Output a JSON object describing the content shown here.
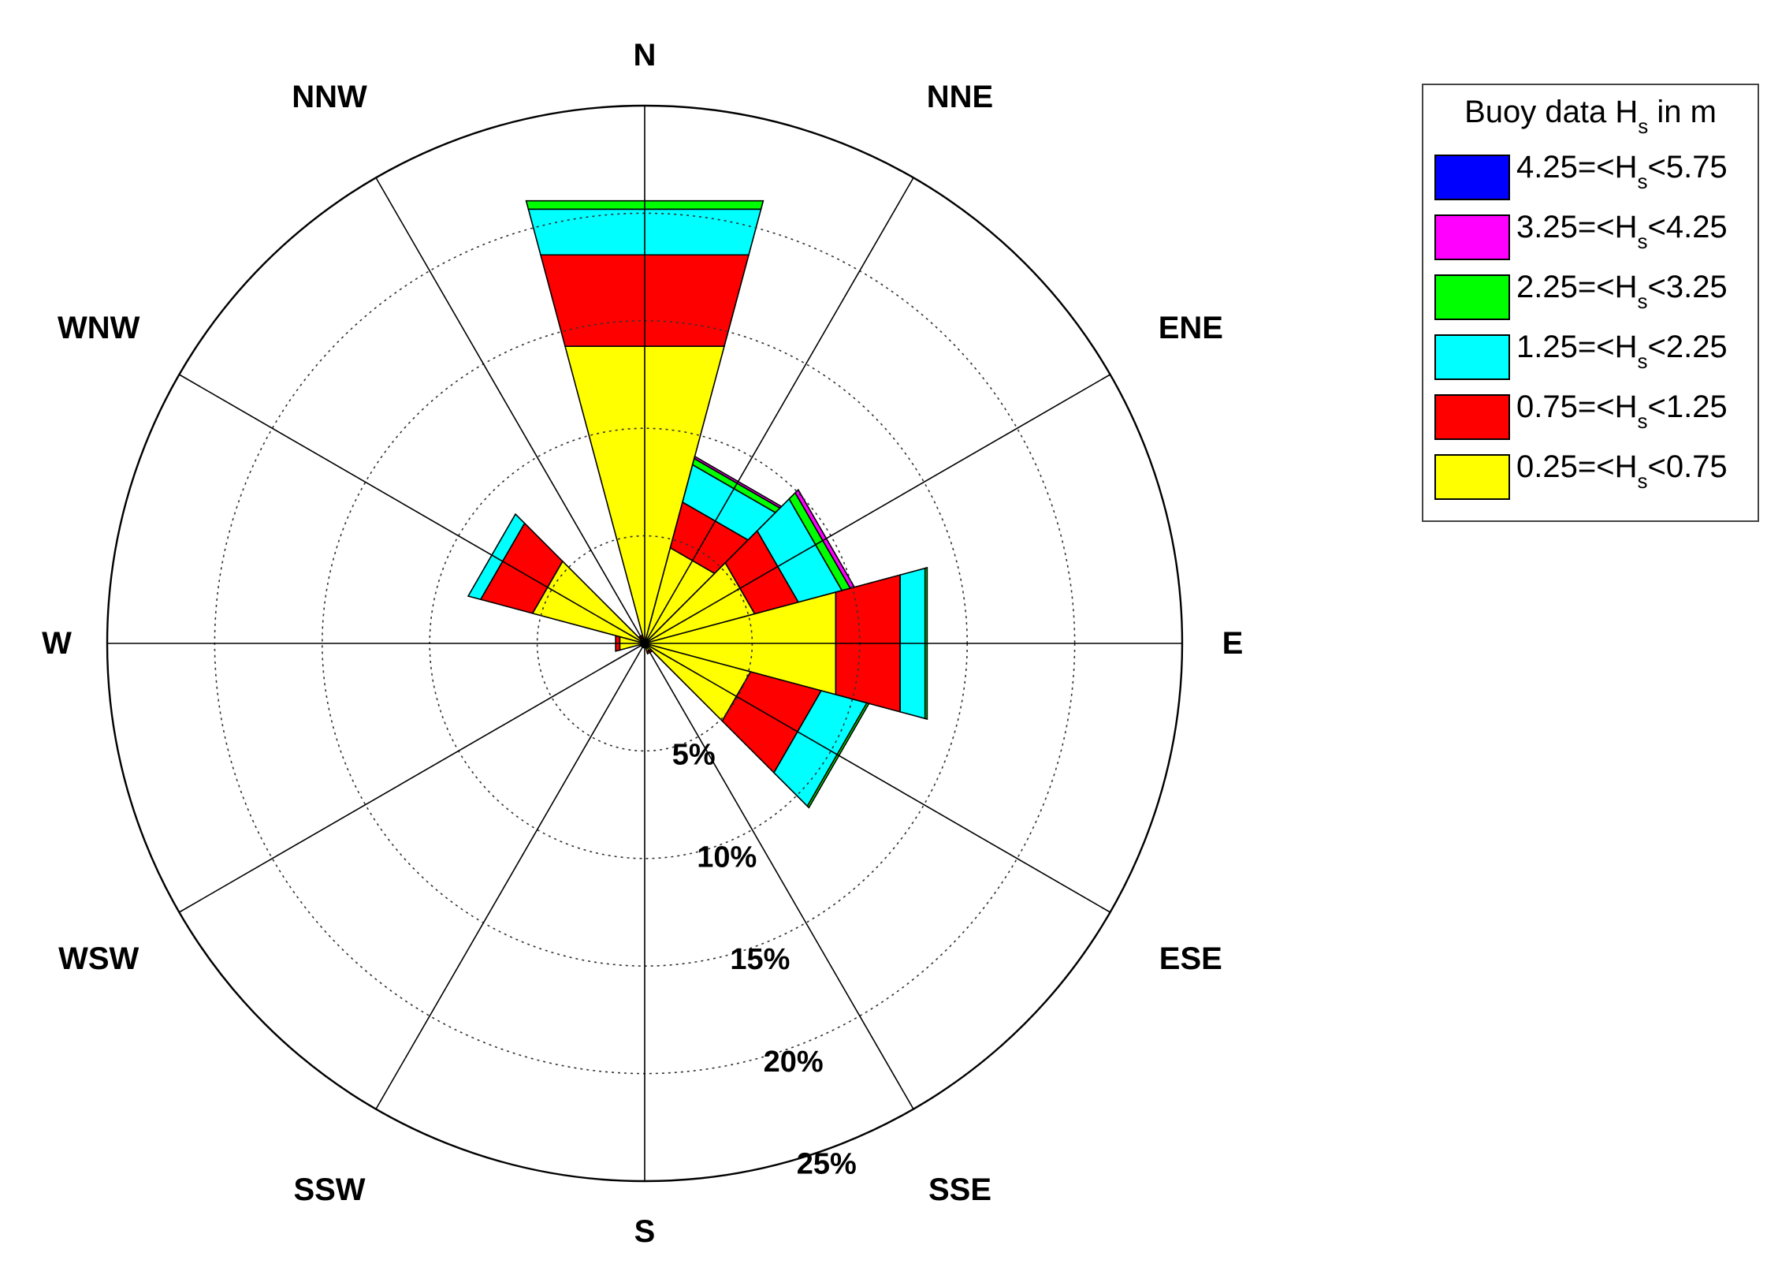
{
  "chart_data": {
    "type": "polar-stacked-bar",
    "title": "",
    "directions": [
      "N",
      "NNE",
      "ENE",
      "E",
      "ESE",
      "SSE",
      "S",
      "SSW",
      "WSW",
      "W",
      "WNW",
      "NNW"
    ],
    "direction_degrees": [
      0,
      30,
      60,
      90,
      120,
      150,
      180,
      210,
      240,
      270,
      300,
      330
    ],
    "radial_ticks": [
      "5%",
      "10%",
      "15%",
      "20%",
      "25%"
    ],
    "radial_tick_values": [
      5,
      10,
      15,
      20,
      25
    ],
    "radial_max": 25,
    "legend": {
      "title_prefix": "Buoy data H",
      "title_sub": "s",
      "title_suffix": " in m",
      "placement": "top-right"
    },
    "bins": [
      {
        "name": "0.25=<Hs<0.75",
        "lo": "0.25=<H",
        "sub": "s",
        "hi": "<0.75",
        "color": "#ffff00"
      },
      {
        "name": "0.75=<Hs<1.25",
        "lo": "0.75=<H",
        "sub": "s",
        "hi": "<1.25",
        "color": "#ff0000"
      },
      {
        "name": "1.25=<Hs<2.25",
        "lo": "1.25=<H",
        "sub": "s",
        "hi": "<2.25",
        "color": "#00ffff"
      },
      {
        "name": "2.25=<Hs<3.25",
        "lo": "2.25=<H",
        "sub": "s",
        "hi": "<3.25",
        "color": "#00ff00"
      },
      {
        "name": "3.25=<Hs<4.25",
        "lo": "3.25=<H",
        "sub": "s",
        "hi": "<4.25",
        "color": "#ff00ff"
      },
      {
        "name": "4.25=<Hs<5.75",
        "lo": "4.25=<H",
        "sub": "s",
        "hi": "<5.75",
        "color": "#0000ff"
      }
    ],
    "sectors": [
      {
        "direction": "N",
        "deg": 0,
        "values": [
          14.3,
          4.4,
          2.2,
          0.4,
          0.0,
          0.0
        ]
      },
      {
        "direction": "NNE",
        "deg": 30,
        "values": [
          4.6,
          2.2,
          1.8,
          0.3,
          0.1,
          0.0
        ]
      },
      {
        "direction": "ENE",
        "deg": 60,
        "values": [
          5.3,
          2.1,
          2.1,
          0.4,
          0.2,
          0.0
        ]
      },
      {
        "direction": "E",
        "deg": 90,
        "values": [
          9.2,
          3.1,
          1.2,
          0.1,
          0.0,
          0.0
        ]
      },
      {
        "direction": "ESE",
        "deg": 120,
        "values": [
          5.1,
          3.4,
          2.2,
          0.1,
          0.0,
          0.0
        ]
      },
      {
        "direction": "SSE",
        "deg": 150,
        "values": [
          0.4,
          0.1,
          0.0,
          0.0,
          0.0,
          0.0
        ]
      },
      {
        "direction": "S",
        "deg": 180,
        "values": [
          0.2,
          0.0,
          0.0,
          0.0,
          0.0,
          0.0
        ]
      },
      {
        "direction": "SSW",
        "deg": 210,
        "values": [
          0.2,
          0.0,
          0.0,
          0.0,
          0.0,
          0.0
        ]
      },
      {
        "direction": "WSW",
        "deg": 240,
        "values": [
          0.2,
          0.0,
          0.0,
          0.0,
          0.0,
          0.0
        ]
      },
      {
        "direction": "W",
        "deg": 270,
        "values": [
          1.2,
          0.2,
          0.0,
          0.0,
          0.0,
          0.0
        ]
      },
      {
        "direction": "WNW",
        "deg": 300,
        "values": [
          5.4,
          2.5,
          0.6,
          0.0,
          0.0,
          0.0
        ]
      },
      {
        "direction": "NNW",
        "deg": 330,
        "values": [
          0.3,
          0.1,
          0.0,
          0.0,
          0.0,
          0.0
        ]
      }
    ]
  }
}
